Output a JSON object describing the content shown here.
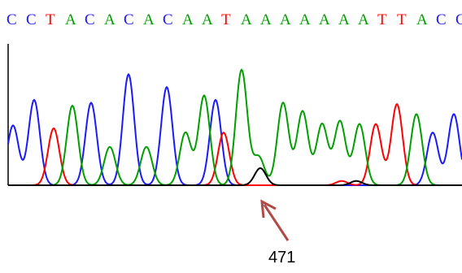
{
  "chart_data": {
    "type": "line",
    "title": "",
    "sequence": [
      "C",
      "C",
      "T",
      "A",
      "C",
      "A",
      "C",
      "A",
      "C",
      "A",
      "A",
      "T",
      "A",
      "A",
      "A",
      "A",
      "A",
      "A",
      "A",
      "T",
      "T",
      "A",
      "C",
      "C"
    ],
    "base_colors": {
      "A": "#00a000",
      "C": "#1a1aff",
      "G": "#000000",
      "T": "#ff0000"
    },
    "series": [
      {
        "base": "C",
        "color": "#1a1aff",
        "peaks": [
          [
            16,
            0.42
          ],
          [
            42,
            0.6
          ],
          [
            112,
            0.58
          ],
          [
            158,
            0.78
          ],
          [
            205,
            0.69
          ],
          [
            265,
            0.6
          ],
          [
            532,
            0.37
          ],
          [
            558,
            0.5
          ]
        ]
      },
      {
        "base": "T",
        "color": "#ff0000",
        "peaks": [
          [
            66,
            0.4
          ],
          [
            275,
            0.37
          ],
          [
            462,
            0.43
          ],
          [
            488,
            0.57
          ],
          [
            420,
            0.03
          ]
        ]
      },
      {
        "base": "A",
        "color": "#00a000",
        "peaks": [
          [
            89,
            0.56
          ],
          [
            135,
            0.27
          ],
          [
            180,
            0.27
          ],
          [
            228,
            0.37
          ],
          [
            251,
            0.63
          ],
          [
            297,
            0.81
          ],
          [
            318,
            0.2
          ],
          [
            348,
            0.58
          ],
          [
            372,
            0.52
          ],
          [
            396,
            0.43
          ],
          [
            418,
            0.45
          ],
          [
            442,
            0.43
          ],
          [
            512,
            0.5
          ]
        ]
      },
      {
        "base": "G",
        "color": "#000000",
        "peaks": [
          [
            320,
            0.12
          ],
          [
            438,
            0.03
          ]
        ]
      }
    ],
    "annotation": {
      "label": "471",
      "points_to_x": 322
    }
  }
}
